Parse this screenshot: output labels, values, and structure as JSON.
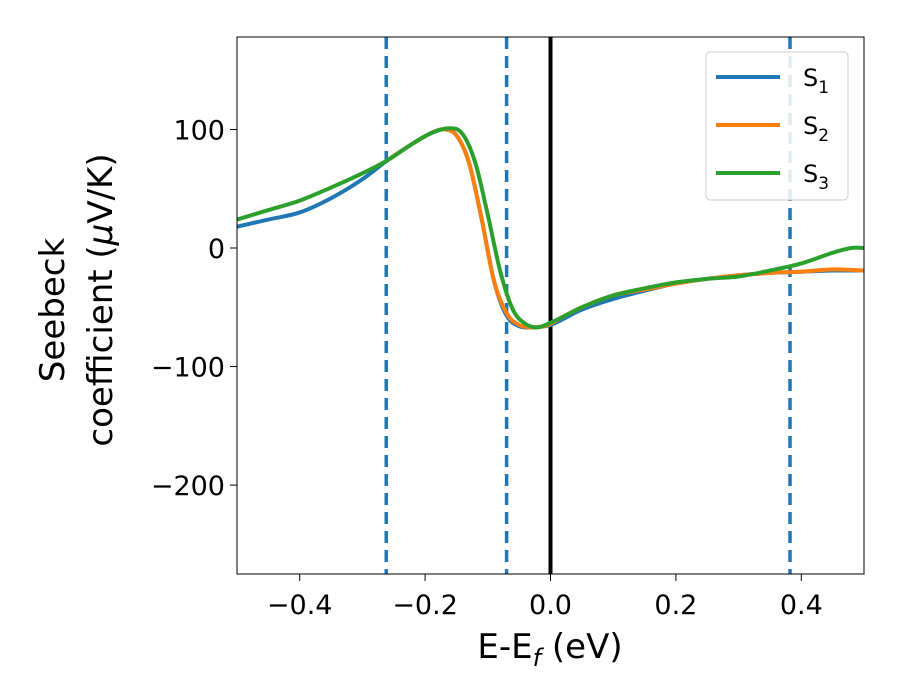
{
  "chart_data": {
    "type": "line",
    "xlabel": {
      "main": "E-E",
      "sub": "f",
      "tail": " (eV)"
    },
    "ylabel": {
      "line1": "Seebeck",
      "line2_main": "coefficient  (",
      "line2_mu": "μ",
      "line2_tail": "V/K)"
    },
    "xlim": [
      -0.5,
      0.5
    ],
    "ylim": [
      -275,
      178
    ],
    "xticks": [
      -0.4,
      -0.2,
      0.0,
      0.2,
      0.4
    ],
    "xtick_labels": [
      "−0.4",
      "−0.2",
      "0.0",
      "0.2",
      "0.4"
    ],
    "yticks": [
      100,
      0,
      -100,
      -200
    ],
    "ytick_labels": [
      "100",
      "0",
      "−100",
      "−200"
    ],
    "grid": false,
    "legend_position": "top-right",
    "vertical_lines": [
      {
        "x": -0.262,
        "style": "dashed",
        "color": "#1f77b4"
      },
      {
        "x": -0.07,
        "style": "dashed",
        "color": "#1f77b4"
      },
      {
        "x": 0.0,
        "style": "solid",
        "color": "#000000"
      },
      {
        "x": 0.382,
        "style": "dashed",
        "color": "#1f77b4"
      }
    ],
    "series": [
      {
        "name": "S",
        "name_sub": "1",
        "color": "#1f77b4",
        "x": [
          -0.5,
          -0.45,
          -0.4,
          -0.35,
          -0.3,
          -0.26,
          -0.22,
          -0.19,
          -0.17,
          -0.15,
          -0.13,
          -0.11,
          -0.09,
          -0.07,
          -0.05,
          -0.03,
          -0.01,
          0.0,
          0.02,
          0.05,
          0.1,
          0.15,
          0.2,
          0.25,
          0.3,
          0.35,
          0.4,
          0.45,
          0.5
        ],
        "y": [
          18,
          24,
          30,
          42,
          58,
          74,
          88,
          97,
          100,
          95,
          72,
          25,
          -28,
          -57,
          -66,
          -67,
          -66,
          -65,
          -60,
          -52,
          -43,
          -36,
          -30,
          -26,
          -23,
          -21,
          -20,
          -19,
          -19
        ]
      },
      {
        "name": "S",
        "name_sub": "2",
        "color": "#ff7f0e",
        "x": [
          -0.26,
          -0.22,
          -0.19,
          -0.17,
          -0.15,
          -0.13,
          -0.11,
          -0.09,
          -0.07,
          -0.05,
          -0.03,
          -0.01,
          0.0,
          0.02,
          0.05,
          0.1,
          0.15,
          0.2,
          0.25,
          0.3,
          0.35,
          0.4,
          0.45,
          0.5
        ],
        "y": [
          74,
          88,
          97,
          100,
          95,
          72,
          25,
          -28,
          -55,
          -65,
          -67,
          -66,
          -64,
          -58,
          -50,
          -40,
          -35,
          -30,
          -26,
          -23,
          -21,
          -20,
          -18,
          -19
        ]
      },
      {
        "name": "S",
        "name_sub": "3",
        "color": "#2ca02c",
        "x": [
          -0.5,
          -0.45,
          -0.4,
          -0.35,
          -0.3,
          -0.26,
          -0.22,
          -0.19,
          -0.16,
          -0.14,
          -0.12,
          -0.1,
          -0.08,
          -0.06,
          -0.04,
          -0.02,
          0.0,
          0.02,
          0.05,
          0.1,
          0.15,
          0.2,
          0.25,
          0.3,
          0.35,
          0.4,
          0.45,
          0.48,
          0.5
        ],
        "y": [
          24,
          32,
          40,
          51,
          63,
          74,
          88,
          97,
          101,
          96,
          72,
          28,
          -20,
          -52,
          -64,
          -67,
          -63,
          -58,
          -50,
          -40,
          -34,
          -29,
          -26,
          -24,
          -19,
          -13,
          -4,
          0,
          0
        ]
      }
    ]
  }
}
